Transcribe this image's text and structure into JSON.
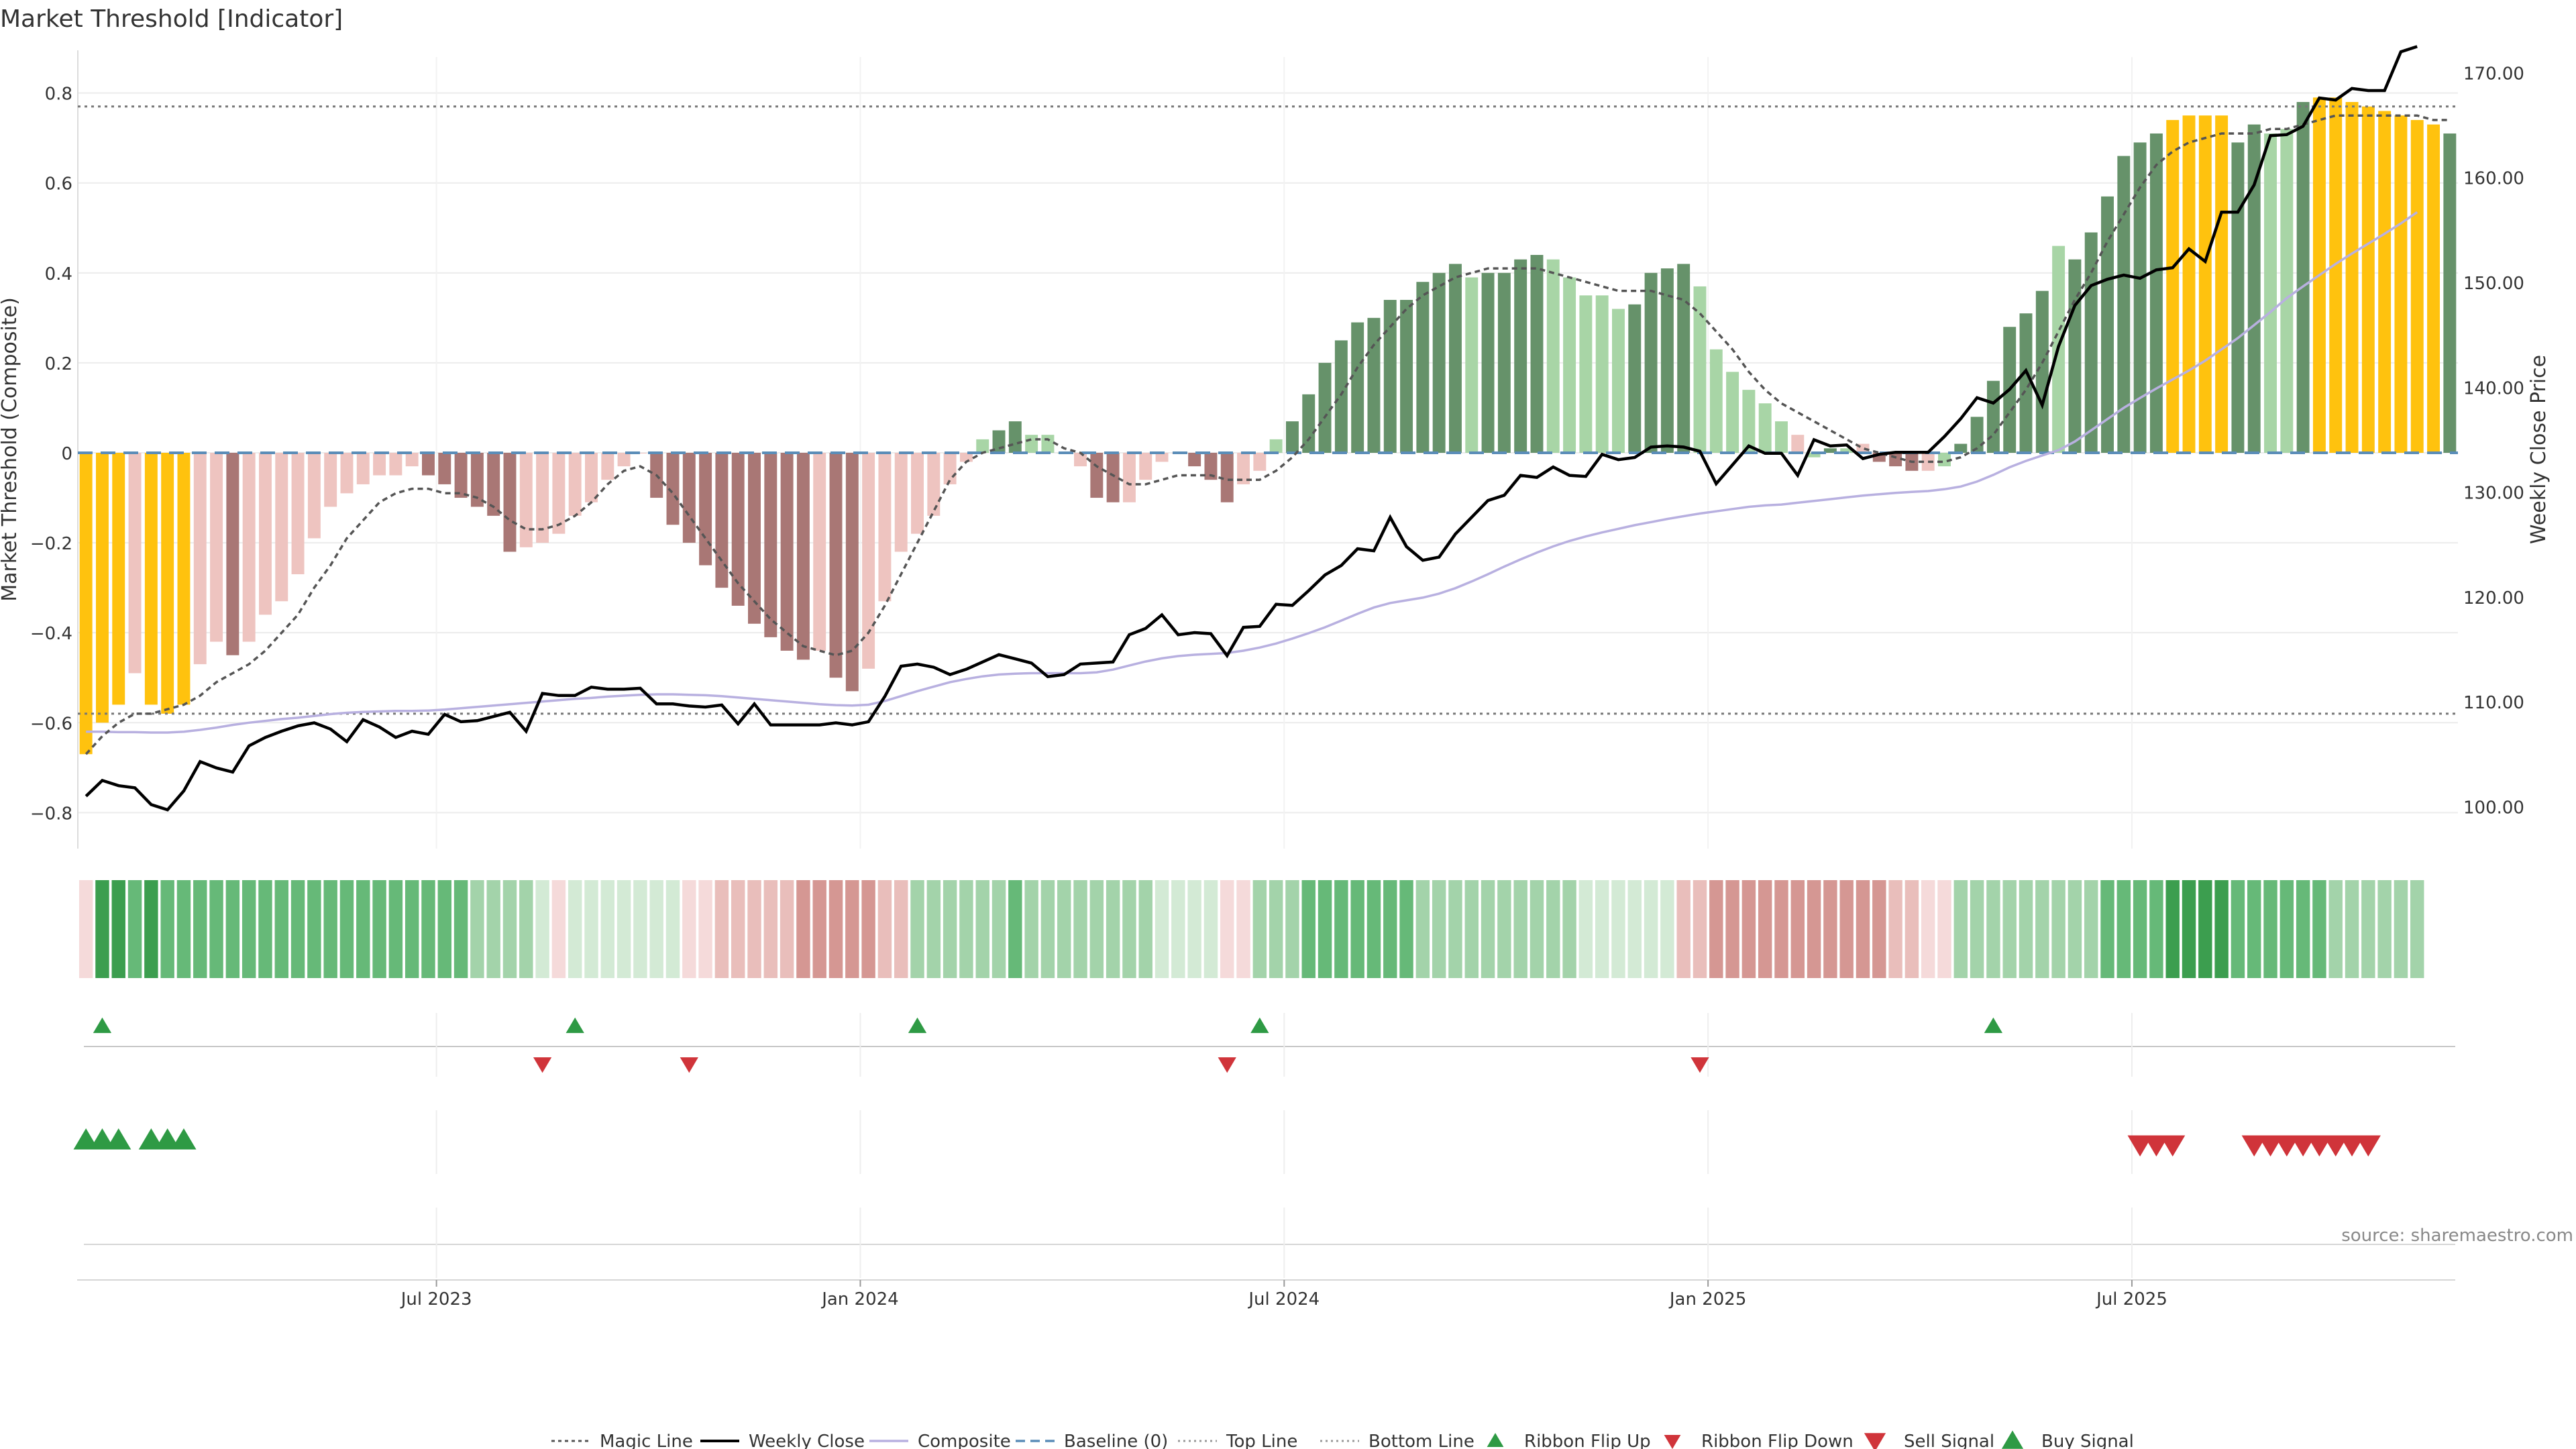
{
  "title": "Market Threshold [Indicator]",
  "source": "source: sharemaestro.com",
  "colors": {
    "yellow": "#FFC20E",
    "dark_green": "#66926A",
    "light_green": "#A8D5A6",
    "dark_red": "#A97775",
    "light_red": "#EEC4C0",
    "magic": "#555555",
    "close": "#000000",
    "composite": "#B8B0E0",
    "baseline": "#5B8DB8",
    "ribbon_green_1": "#3C9E4F",
    "ribbon_green_2": "#66B978",
    "ribbon_green_3": "#A3D3AA",
    "ribbon_green_4": "#D3EAD5",
    "ribbon_red_1": "#D59793",
    "ribbon_red_2": "#E9BEBB",
    "ribbon_red_3": "#F5DADA",
    "flip_up": "#2E9A44",
    "flip_down": "#D0343A"
  },
  "chart_data": {
    "type": "bar",
    "title": "Market Threshold [Indicator]",
    "ylabel": "Market Threshold (Composite)",
    "y2label": "Weekly Close Price",
    "ylim": [
      -0.88,
      0.88
    ],
    "y2lim": [
      96.0,
      171.5
    ],
    "yticks": [
      -0.8,
      -0.6,
      -0.4,
      -0.2,
      0,
      0.2,
      0.4,
      0.6,
      0.8
    ],
    "ytick_labels": [
      "−0.8",
      "−0.6",
      "−0.4",
      "−0.2",
      "0",
      "0.2",
      "0.4",
      "0.6",
      "0.8"
    ],
    "y2ticks": [
      100,
      110,
      120,
      130,
      140,
      150,
      160,
      170
    ],
    "y2tick_labels": [
      "100.00",
      "110.00",
      "120.00",
      "130.00",
      "140.00",
      "150.00",
      "160.00",
      "170.00"
    ],
    "xtick_index": [
      22,
      48,
      74,
      100,
      126
    ],
    "xtick_labels": [
      "Jul 2023",
      "Jan 2024",
      "Jul 2024",
      "Jan 2025",
      "Jul 2025"
    ],
    "top_line": 0.77,
    "bottom_line": -0.58,
    "baseline": 0,
    "grid": true,
    "legend_position": "bottom-center",
    "bars": {
      "values": [
        -0.67,
        -0.6,
        -0.56,
        -0.49,
        -0.56,
        -0.58,
        -0.56,
        -0.47,
        -0.42,
        -0.45,
        -0.42,
        -0.36,
        -0.33,
        -0.27,
        -0.19,
        -0.12,
        -0.09,
        -0.07,
        -0.05,
        -0.05,
        -0.03,
        -0.05,
        -0.07,
        -0.1,
        -0.12,
        -0.14,
        -0.22,
        -0.21,
        -0.2,
        -0.18,
        -0.14,
        -0.11,
        -0.06,
        -0.03,
        0,
        -0.1,
        -0.16,
        -0.2,
        -0.25,
        -0.3,
        -0.34,
        -0.38,
        -0.41,
        -0.44,
        -0.46,
        -0.44,
        -0.5,
        -0.53,
        -0.48,
        -0.33,
        -0.22,
        -0.18,
        -0.14,
        -0.07,
        -0.02,
        0.03,
        0.05,
        0.07,
        0.04,
        0.04,
        0,
        -0.03,
        -0.1,
        -0.11,
        -0.11,
        -0.06,
        -0.02,
        0,
        -0.03,
        -0.06,
        -0.11,
        -0.07,
        -0.04,
        0.03,
        0.07,
        0.13,
        0.2,
        0.25,
        0.29,
        0.3,
        0.34,
        0.34,
        0.38,
        0.4,
        0.42,
        0.39,
        0.4,
        0.4,
        0.43,
        0.44,
        0.43,
        0.39,
        0.35,
        0.35,
        0.32,
        0.33,
        0.4,
        0.41,
        0.42,
        0.37,
        0.23,
        0.18,
        0.14,
        0.11,
        0.07,
        0.04,
        -0.01,
        0.01,
        0.01,
        0.02,
        -0.02,
        -0.03,
        -0.04,
        -0.04,
        -0.03,
        0.02,
        0.08,
        0.16,
        0.28,
        0.31,
        0.36,
        0.46,
        0.43,
        0.49,
        0.57,
        0.66,
        0.69,
        0.71,
        0.74,
        0.75,
        0.75,
        0.75,
        0.69,
        0.73,
        0.71,
        0.72,
        0.78,
        0.79,
        0.79,
        0.78,
        0.77,
        0.76,
        0.75,
        0.74,
        0.73,
        0.71
      ],
      "color_keys": [
        "yellow",
        "yellow",
        "yellow",
        "light_red",
        "yellow",
        "yellow",
        "yellow",
        "light_red",
        "light_red",
        "dark_red",
        "light_red",
        "light_red",
        "light_red",
        "light_red",
        "light_red",
        "light_red",
        "light_red",
        "light_red",
        "light_red",
        "light_red",
        "light_red",
        "dark_red",
        "dark_red",
        "dark_red",
        "dark_red",
        "dark_red",
        "dark_red",
        "light_red",
        "light_red",
        "light_red",
        "light_red",
        "light_red",
        "light_red",
        "light_red",
        "light_red",
        "dark_red",
        "dark_red",
        "dark_red",
        "dark_red",
        "dark_red",
        "dark_red",
        "dark_red",
        "dark_red",
        "dark_red",
        "dark_red",
        "light_red",
        "dark_red",
        "dark_red",
        "light_red",
        "light_red",
        "light_red",
        "light_red",
        "light_red",
        "light_red",
        "light_red",
        "light_green",
        "dark_green",
        "dark_green",
        "light_green",
        "light_green",
        "light_green",
        "light_red",
        "dark_red",
        "dark_red",
        "light_red",
        "light_red",
        "light_red",
        "light_red",
        "dark_red",
        "dark_red",
        "dark_red",
        "light_red",
        "light_red",
        "light_green",
        "dark_green",
        "dark_green",
        "dark_green",
        "dark_green",
        "dark_green",
        "dark_green",
        "dark_green",
        "dark_green",
        "dark_green",
        "dark_green",
        "dark_green",
        "light_green",
        "dark_green",
        "dark_green",
        "dark_green",
        "dark_green",
        "light_green",
        "light_green",
        "light_green",
        "light_green",
        "light_green",
        "dark_green",
        "dark_green",
        "dark_green",
        "dark_green",
        "light_green",
        "light_green",
        "light_green",
        "light_green",
        "light_green",
        "light_green",
        "light_red",
        "light_green",
        "dark_green",
        "light_green",
        "light_red",
        "dark_red",
        "dark_red",
        "dark_red",
        "light_red",
        "light_green",
        "dark_green",
        "dark_green",
        "dark_green",
        "dark_green",
        "dark_green",
        "dark_green",
        "light_green",
        "dark_green",
        "dark_green",
        "dark_green",
        "dark_green",
        "dark_green",
        "dark_green",
        "yellow",
        "yellow",
        "yellow",
        "yellow",
        "dark_green",
        "dark_green",
        "light_green",
        "light_green",
        "dark_green",
        "yellow",
        "yellow",
        "yellow",
        "yellow",
        "yellow",
        "yellow",
        "yellow",
        "yellow",
        "dark_green",
        "light_green"
      ]
    },
    "magic_line": [
      -0.67,
      -0.63,
      -0.6,
      -0.58,
      -0.58,
      -0.57,
      -0.56,
      -0.54,
      -0.51,
      -0.49,
      -0.47,
      -0.44,
      -0.4,
      -0.36,
      -0.3,
      -0.25,
      -0.19,
      -0.15,
      -0.11,
      -0.09,
      -0.08,
      -0.08,
      -0.09,
      -0.09,
      -0.1,
      -0.12,
      -0.15,
      -0.17,
      -0.17,
      -0.16,
      -0.14,
      -0.11,
      -0.07,
      -0.04,
      -0.03,
      -0.05,
      -0.09,
      -0.14,
      -0.19,
      -0.24,
      -0.29,
      -0.33,
      -0.37,
      -0.4,
      -0.43,
      -0.44,
      -0.45,
      -0.44,
      -0.4,
      -0.34,
      -0.27,
      -0.2,
      -0.13,
      -0.06,
      -0.02,
      0,
      0.01,
      0.02,
      0.03,
      0.03,
      0.01,
      0,
      -0.03,
      -0.05,
      -0.07,
      -0.07,
      -0.06,
      -0.05,
      -0.05,
      -0.05,
      -0.06,
      -0.06,
      -0.06,
      -0.04,
      -0.01,
      0.03,
      0.08,
      0.13,
      0.19,
      0.24,
      0.28,
      0.32,
      0.35,
      0.37,
      0.39,
      0.4,
      0.41,
      0.41,
      0.41,
      0.41,
      0.4,
      0.39,
      0.38,
      0.37,
      0.36,
      0.36,
      0.36,
      0.35,
      0.34,
      0.31,
      0.27,
      0.23,
      0.18,
      0.14,
      0.11,
      0.09,
      0.07,
      0.05,
      0.03,
      0.01,
      0,
      -0.01,
      -0.02,
      -0.02,
      -0.02,
      -0.01,
      0.01,
      0.04,
      0.09,
      0.14,
      0.2,
      0.27,
      0.34,
      0.4,
      0.47,
      0.53,
      0.59,
      0.64,
      0.67,
      0.69,
      0.7,
      0.71,
      0.71,
      0.71,
      0.72,
      0.72,
      0.73,
      0.74,
      0.75,
      0.75,
      0.75,
      0.75,
      0.75,
      0.75,
      0.74,
      0.74
    ],
    "weekly_close": [
      101.0,
      102.5,
      102.0,
      101.8,
      100.2,
      99.7,
      101.5,
      104.3,
      103.7,
      103.3,
      105.8,
      106.6,
      107.2,
      107.7,
      108.0,
      107.4,
      106.2,
      108.3,
      107.6,
      106.6,
      107.2,
      106.9,
      108.8,
      108.1,
      108.2,
      108.6,
      109.0,
      107.2,
      110.8,
      110.6,
      110.6,
      111.4,
      111.2,
      111.2,
      111.3,
      109.8,
      109.8,
      109.6,
      109.5,
      109.7,
      107.9,
      109.8,
      107.8,
      107.8,
      107.8,
      107.8,
      108.0,
      107.8,
      108.1,
      110.5,
      113.4,
      113.6,
      113.3,
      112.6,
      113.1,
      113.8,
      114.5,
      114.1,
      113.7,
      112.4,
      112.6,
      113.6,
      113.7,
      113.8,
      116.4,
      117.0,
      118.3,
      116.4,
      116.6,
      116.5,
      114.4,
      117.1,
      117.2,
      119.3,
      119.2,
      120.6,
      122.1,
      123.0,
      124.6,
      124.4,
      127.6,
      124.8,
      123.5,
      123.8,
      126.0,
      127.6,
      129.2,
      129.7,
      131.6,
      131.4,
      132.4,
      131.6,
      131.5,
      133.6,
      133.1,
      133.3,
      134.3,
      134.4,
      134.3,
      133.9,
      130.8,
      132.6,
      134.4,
      133.7,
      133.7,
      131.6,
      135.0,
      134.4,
      134.5,
      133.2,
      133.6,
      133.8,
      133.8,
      133.8,
      135.3,
      137.0,
      139.0,
      138.5,
      139.8,
      141.6,
      138.3,
      143.9,
      147.8,
      149.7,
      150.3,
      150.7,
      150.4,
      151.2,
      151.4,
      153.2,
      152.0,
      156.7,
      156.7,
      159.3,
      164.0,
      164.1,
      164.9,
      167.6,
      167.4,
      168.5,
      168.3,
      168.3,
      172.0,
      172.5
    ],
    "composite": [
      -0.62,
      -0.62,
      -0.621,
      -0.621,
      -0.622,
      -0.622,
      -0.62,
      -0.616,
      -0.611,
      -0.605,
      -0.6,
      -0.596,
      -0.592,
      -0.589,
      -0.585,
      -0.581,
      -0.578,
      -0.576,
      -0.575,
      -0.574,
      -0.574,
      -0.573,
      -0.571,
      -0.568,
      -0.565,
      -0.562,
      -0.559,
      -0.556,
      -0.553,
      -0.55,
      -0.547,
      -0.545,
      -0.542,
      -0.54,
      -0.538,
      -0.537,
      -0.537,
      -0.538,
      -0.539,
      -0.541,
      -0.544,
      -0.547,
      -0.55,
      -0.553,
      -0.556,
      -0.559,
      -0.561,
      -0.562,
      -0.56,
      -0.552,
      -0.541,
      -0.53,
      -0.52,
      -0.51,
      -0.503,
      -0.497,
      -0.493,
      -0.491,
      -0.49,
      -0.49,
      -0.49,
      -0.49,
      -0.488,
      -0.482,
      -0.473,
      -0.464,
      -0.457,
      -0.452,
      -0.449,
      -0.447,
      -0.445,
      -0.44,
      -0.433,
      -0.424,
      -0.413,
      -0.401,
      -0.388,
      -0.373,
      -0.358,
      -0.344,
      -0.334,
      -0.328,
      -0.322,
      -0.313,
      -0.301,
      -0.286,
      -0.27,
      -0.253,
      -0.237,
      -0.222,
      -0.208,
      -0.196,
      -0.186,
      -0.177,
      -0.169,
      -0.161,
      -0.154,
      -0.147,
      -0.141,
      -0.135,
      -0.13,
      -0.125,
      -0.12,
      -0.117,
      -0.115,
      -0.111,
      -0.107,
      -0.103,
      -0.099,
      -0.095,
      -0.092,
      -0.089,
      -0.087,
      -0.085,
      -0.081,
      -0.075,
      -0.064,
      -0.049,
      -0.032,
      -0.018,
      -0.006,
      0.006,
      0.025,
      0.05,
      0.075,
      0.1,
      0.122,
      0.143,
      0.163,
      0.183,
      0.205,
      0.23,
      0.255,
      0.284,
      0.313,
      0.344,
      0.37,
      0.395,
      0.42,
      0.443,
      0.465,
      0.487,
      0.51,
      0.535
    ],
    "ribbon": {
      "color_keys": [
        "ribbon_red_3",
        "ribbon_green_1",
        "ribbon_green_1",
        "ribbon_green_2",
        "ribbon_green_1",
        "ribbon_green_2",
        "ribbon_green_2",
        "ribbon_green_2",
        "ribbon_green_2",
        "ribbon_green_2",
        "ribbon_green_2",
        "ribbon_green_2",
        "ribbon_green_2",
        "ribbon_green_2",
        "ribbon_green_2",
        "ribbon_green_2",
        "ribbon_green_2",
        "ribbon_green_2",
        "ribbon_green_2",
        "ribbon_green_2",
        "ribbon_green_2",
        "ribbon_green_2",
        "ribbon_green_2",
        "ribbon_green_2",
        "ribbon_green_3",
        "ribbon_green_3",
        "ribbon_green_3",
        "ribbon_green_3",
        "ribbon_green_4",
        "ribbon_red_3",
        "ribbon_green_4",
        "ribbon_green_4",
        "ribbon_green_4",
        "ribbon_green_4",
        "ribbon_green_4",
        "ribbon_green_4",
        "ribbon_green_4",
        "ribbon_red_3",
        "ribbon_red_3",
        "ribbon_red_2",
        "ribbon_red_2",
        "ribbon_red_2",
        "ribbon_red_2",
        "ribbon_red_2",
        "ribbon_red_1",
        "ribbon_red_1",
        "ribbon_red_1",
        "ribbon_red_1",
        "ribbon_red_1",
        "ribbon_red_2",
        "ribbon_red_2",
        "ribbon_green_3",
        "ribbon_green_3",
        "ribbon_green_3",
        "ribbon_green_3",
        "ribbon_green_3",
        "ribbon_green_3",
        "ribbon_green_2",
        "ribbon_green_3",
        "ribbon_green_3",
        "ribbon_green_3",
        "ribbon_green_3",
        "ribbon_green_3",
        "ribbon_green_3",
        "ribbon_green_3",
        "ribbon_green_3",
        "ribbon_green_4",
        "ribbon_green_4",
        "ribbon_green_4",
        "ribbon_green_4",
        "ribbon_red_3",
        "ribbon_red_3",
        "ribbon_green_3",
        "ribbon_green_3",
        "ribbon_green_3",
        "ribbon_green_2",
        "ribbon_green_2",
        "ribbon_green_2",
        "ribbon_green_2",
        "ribbon_green_2",
        "ribbon_green_2",
        "ribbon_green_2",
        "ribbon_green_3",
        "ribbon_green_3",
        "ribbon_green_3",
        "ribbon_green_3",
        "ribbon_green_3",
        "ribbon_green_3",
        "ribbon_green_3",
        "ribbon_green_3",
        "ribbon_green_3",
        "ribbon_green_3",
        "ribbon_green_4",
        "ribbon_green_4",
        "ribbon_green_4",
        "ribbon_green_4",
        "ribbon_green_4",
        "ribbon_green_4",
        "ribbon_red_2",
        "ribbon_red_2",
        "ribbon_red_1",
        "ribbon_red_1",
        "ribbon_red_1",
        "ribbon_red_1",
        "ribbon_red_1",
        "ribbon_red_1",
        "ribbon_red_1",
        "ribbon_red_1",
        "ribbon_red_1",
        "ribbon_red_1",
        "ribbon_red_1",
        "ribbon_red_2",
        "ribbon_red_2",
        "ribbon_red_3",
        "ribbon_red_3",
        "ribbon_green_3",
        "ribbon_green_3",
        "ribbon_green_3",
        "ribbon_green_3",
        "ribbon_green_3",
        "ribbon_green_3",
        "ribbon_green_3",
        "ribbon_green_3",
        "ribbon_green_3",
        "ribbon_green_2",
        "ribbon_green_2",
        "ribbon_green_2",
        "ribbon_green_2",
        "ribbon_green_1",
        "ribbon_green_1",
        "ribbon_green_1",
        "ribbon_green_1",
        "ribbon_green_2",
        "ribbon_green_2",
        "ribbon_green_2",
        "ribbon_green_2",
        "ribbon_green_2",
        "ribbon_green_2",
        "ribbon_green_3",
        "ribbon_green_3",
        "ribbon_green_3",
        "ribbon_green_3",
        "ribbon_green_3",
        "ribbon_green_3"
      ]
    },
    "ribbon_flip_up_index": [
      1,
      30,
      51,
      72,
      117
    ],
    "ribbon_flip_down_index": [
      28,
      37,
      70,
      99
    ],
    "buy_signal_index": [
      0,
      1,
      2,
      4,
      5,
      6
    ],
    "sell_signal_index": [
      126,
      127,
      128,
      133,
      134,
      135,
      136,
      137,
      138,
      139,
      140
    ],
    "legend": [
      "Magic Line",
      "Weekly Close",
      "Composite",
      "Baseline (0)",
      "Top Line",
      "Bottom Line",
      "Ribbon Flip Up",
      "Ribbon Flip Down",
      "Sell Signal",
      "Buy Signal"
    ]
  }
}
